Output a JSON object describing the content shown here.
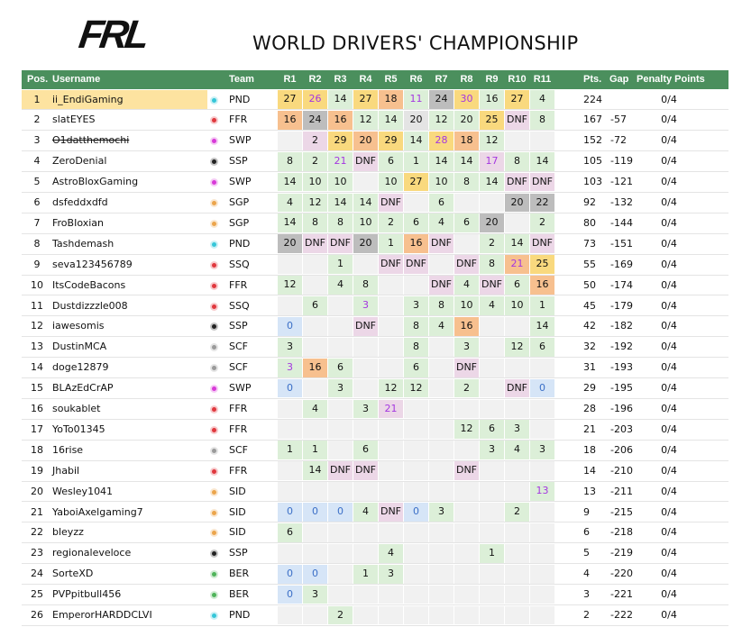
{
  "header": {
    "logo": "FRL",
    "title": "WORLD DRIVERS' CHAMPIONSHIP"
  },
  "table": {
    "columns": [
      "Pos.",
      "Username",
      "Team",
      "R1",
      "R2",
      "R3",
      "R4",
      "R5",
      "R6",
      "R7",
      "R8",
      "R9",
      "R10",
      "R11",
      "Pts.",
      "Gap",
      "Penalty Points"
    ],
    "team_colors": {
      "PND": "#35c6d8",
      "FFR": "#e0383e",
      "SWP": "#d83ad8",
      "SSP": "#222222",
      "SGP": "#eba54c",
      "SSQ": "#e0383e",
      "SCF": "#9a9a9a",
      "SID": "#eba54c",
      "BER": "#4fb45a"
    },
    "shade_colors": {
      "G": "#f9d97e",
      "S": "#bdbdbd",
      "B": "#f7c08f",
      "P": "#dcefd8",
      "N": "#e4e4e4",
      "D": "#ecd7e7",
      "Z": "#d6e5f7",
      "E": "#f1f1f1"
    },
    "rows": [
      {
        "pos": 1,
        "username": "ii_EndiGaming",
        "team": "PND",
        "results": [
          "27",
          "26",
          "14",
          "27",
          "18",
          "11",
          "24",
          "30",
          "16",
          "27",
          "4"
        ],
        "shade": [
          "G",
          "GF",
          "P",
          "G",
          "B",
          "PF",
          "S",
          "GF",
          "P",
          "G",
          "P"
        ],
        "pts": 224,
        "penalty": "0/4"
      },
      {
        "pos": 2,
        "username": "slatEYES",
        "team": "FFR",
        "results": [
          "16",
          "24",
          "16",
          "12",
          "14",
          "20",
          "12",
          "20",
          "25",
          "DNF",
          "8"
        ],
        "shade": [
          "B",
          "S",
          "B",
          "P",
          "P",
          "N",
          "P",
          "P",
          "G",
          "D",
          "P"
        ],
        "pts": 167,
        "gap": -57,
        "penalty": "0/4"
      },
      {
        "pos": 3,
        "username": "O1datthemochi",
        "struck": true,
        "team": "SWP",
        "results": [
          "",
          "2",
          "29",
          "20",
          "29",
          "14",
          "28",
          "18",
          "12",
          "",
          ""
        ],
        "shade": [
          "E",
          "D",
          "G",
          "B",
          "G",
          "P",
          "GF",
          "B",
          "P",
          "E",
          "E"
        ],
        "pts": 152,
        "gap": -72,
        "penalty": "0/4"
      },
      {
        "pos": 4,
        "username": "ZeroDenial",
        "team": "SSP",
        "results": [
          "8",
          "2",
          "21",
          "DNF",
          "6",
          "1",
          "14",
          "14",
          "17",
          "8",
          "14"
        ],
        "shade": [
          "P",
          "P",
          "PF",
          "D",
          "P",
          "P",
          "P",
          "P",
          "DF",
          "P",
          "P"
        ],
        "pts": 105,
        "gap": -119,
        "penalty": "0/4"
      },
      {
        "pos": 5,
        "username": "AstroBloxGaming",
        "team": "SWP",
        "results": [
          "14",
          "10",
          "10",
          "",
          "10",
          "27",
          "10",
          "8",
          "14",
          "DNF",
          "DNF"
        ],
        "shade": [
          "P",
          "P",
          "P",
          "E",
          "P",
          "G",
          "P",
          "P",
          "P",
          "D",
          "D"
        ],
        "pts": 103,
        "gap": -121,
        "penalty": "0/4"
      },
      {
        "pos": 6,
        "username": "dsfeddxdfd",
        "team": "SGP",
        "results": [
          "4",
          "12",
          "14",
          "14",
          "DNF",
          "",
          "6",
          "",
          "",
          "20",
          "22"
        ],
        "shade": [
          "P",
          "P",
          "P",
          "P",
          "D",
          "E",
          "P",
          "E",
          "E",
          "S",
          "S"
        ],
        "pts": 92,
        "gap": -132,
        "penalty": "0/4"
      },
      {
        "pos": 7,
        "username": "FroBIoxian",
        "team": "SGP",
        "results": [
          "14",
          "8",
          "8",
          "10",
          "2",
          "6",
          "4",
          "6",
          "20",
          "",
          "2"
        ],
        "shade": [
          "P",
          "P",
          "P",
          "P",
          "P",
          "P",
          "P",
          "P",
          "S",
          "E",
          "P"
        ],
        "pts": 80,
        "gap": -144,
        "penalty": "0/4"
      },
      {
        "pos": 8,
        "username": "Tashdemash",
        "team": "PND",
        "results": [
          "20",
          "DNF",
          "DNF",
          "20",
          "1",
          "16",
          "DNF",
          "",
          "2",
          "14",
          "DNF"
        ],
        "shade": [
          "S",
          "D",
          "D",
          "S",
          "P",
          "B",
          "D",
          "E",
          "P",
          "P",
          "D"
        ],
        "pts": 73,
        "gap": -151,
        "penalty": "0/4"
      },
      {
        "pos": 9,
        "username": "seva123456789",
        "team": "SSQ",
        "results": [
          "",
          "",
          "1",
          "",
          "DNF",
          "DNF",
          "",
          "DNF",
          "8",
          "21",
          "25"
        ],
        "shade": [
          "E",
          "E",
          "P",
          "E",
          "D",
          "D",
          "E",
          "D",
          "P",
          "BF",
          "G"
        ],
        "pts": 55,
        "gap": -169,
        "penalty": "0/4"
      },
      {
        "pos": 10,
        "username": "ItsCodeBacons",
        "team": "FFR",
        "results": [
          "12",
          "",
          "4",
          "8",
          "",
          "",
          "DNF",
          "4",
          "DNF",
          "6",
          "16"
        ],
        "shade": [
          "P",
          "E",
          "P",
          "P",
          "E",
          "E",
          "D",
          "P",
          "D",
          "P",
          "B"
        ],
        "pts": 50,
        "gap": -174,
        "penalty": "0/4"
      },
      {
        "pos": 11,
        "username": "Dustdizzzle008",
        "team": "SSQ",
        "results": [
          "",
          "6",
          "",
          "3",
          "",
          "3",
          "8",
          "10",
          "4",
          "10",
          "1"
        ],
        "shade": [
          "E",
          "P",
          "E",
          "PF",
          "E",
          "P",
          "P",
          "P",
          "P",
          "P",
          "P"
        ],
        "pts": 45,
        "gap": -179,
        "penalty": "0/4"
      },
      {
        "pos": 12,
        "username": "iawesomis",
        "team": "SSP",
        "results": [
          "0",
          "",
          "",
          "DNF",
          "",
          "8",
          "4",
          "16",
          "",
          "",
          "14"
        ],
        "shade": [
          "Z",
          "E",
          "E",
          "D",
          "E",
          "P",
          "P",
          "B",
          "E",
          "E",
          "P"
        ],
        "pts": 42,
        "gap": -182,
        "penalty": "0/4"
      },
      {
        "pos": 13,
        "username": "DustinMCA",
        "team": "SCF",
        "results": [
          "3",
          "",
          "",
          "",
          "",
          "8",
          "",
          "3",
          "",
          "12",
          "6"
        ],
        "shade": [
          "P",
          "E",
          "E",
          "E",
          "E",
          "P",
          "E",
          "P",
          "E",
          "P",
          "P"
        ],
        "pts": 32,
        "gap": -192,
        "penalty": "0/4"
      },
      {
        "pos": 14,
        "username": "doge12879",
        "team": "SCF",
        "results": [
          "3",
          "16",
          "6",
          "",
          "",
          "6",
          "",
          "DNF",
          "",
          "",
          ""
        ],
        "shade": [
          "PF",
          "B",
          "P",
          "E",
          "E",
          "P",
          "E",
          "D",
          "E",
          "E",
          "E"
        ],
        "pts": 31,
        "gap": -193,
        "penalty": "0/4"
      },
      {
        "pos": 15,
        "username": "BLAzEdCrAP",
        "team": "SWP",
        "results": [
          "0",
          "",
          "3",
          "",
          "12",
          "12",
          "",
          "2",
          "",
          "DNF",
          "0"
        ],
        "shade": [
          "Z",
          "E",
          "P",
          "E",
          "P",
          "P",
          "E",
          "P",
          "E",
          "D",
          "Z"
        ],
        "pts": 29,
        "gap": -195,
        "penalty": "0/4"
      },
      {
        "pos": 16,
        "username": "soukablet",
        "team": "FFR",
        "results": [
          "",
          "4",
          "",
          "3",
          "21",
          "",
          "",
          "",
          "",
          "",
          ""
        ],
        "shade": [
          "E",
          "P",
          "E",
          "P",
          "DF",
          "E",
          "E",
          "E",
          "E",
          "E",
          "E"
        ],
        "pts": 28,
        "gap": -196,
        "penalty": "0/4"
      },
      {
        "pos": 17,
        "username": "YoTo01345",
        "team": "FFR",
        "results": [
          "",
          "",
          "",
          "",
          "",
          "",
          "",
          "12",
          "6",
          "3",
          ""
        ],
        "shade": [
          "E",
          "E",
          "E",
          "E",
          "E",
          "E",
          "E",
          "P",
          "P",
          "P",
          "E"
        ],
        "pts": 21,
        "gap": -203,
        "penalty": "0/4"
      },
      {
        "pos": 18,
        "username": "16rise",
        "team": "SCF",
        "results": [
          "1",
          "1",
          "",
          "6",
          "",
          "",
          "",
          "",
          "3",
          "4",
          "3"
        ],
        "shade": [
          "P",
          "P",
          "E",
          "P",
          "E",
          "E",
          "E",
          "E",
          "P",
          "P",
          "P"
        ],
        "pts": 18,
        "gap": -206,
        "penalty": "0/4"
      },
      {
        "pos": 19,
        "username": "Jhabil",
        "team": "FFR",
        "results": [
          "",
          "14",
          "DNF",
          "DNF",
          "",
          "",
          "",
          "DNF",
          "",
          "",
          ""
        ],
        "shade": [
          "E",
          "P",
          "D",
          "D",
          "E",
          "E",
          "E",
          "D",
          "E",
          "E",
          "E"
        ],
        "pts": 14,
        "gap": -210,
        "penalty": "0/4"
      },
      {
        "pos": 20,
        "username": "Wesley1041",
        "team": "SID",
        "results": [
          "",
          "",
          "",
          "",
          "",
          "",
          "",
          "",
          "",
          "",
          "13"
        ],
        "shade": [
          "E",
          "E",
          "E",
          "E",
          "E",
          "E",
          "E",
          "E",
          "E",
          "E",
          "PF"
        ],
        "pts": 13,
        "gap": -211,
        "penalty": "0/4"
      },
      {
        "pos": 21,
        "username": "YaboiAxelgaming7",
        "team": "SID",
        "results": [
          "0",
          "0",
          "0",
          "4",
          "DNF",
          "0",
          "3",
          "",
          "",
          "2",
          ""
        ],
        "shade": [
          "Z",
          "Z",
          "Z",
          "P",
          "D",
          "Z",
          "P",
          "E",
          "E",
          "P",
          "E"
        ],
        "pts": 9,
        "gap": -215,
        "penalty": "0/4"
      },
      {
        "pos": 22,
        "username": "bleyzz",
        "team": "SID",
        "results": [
          "6",
          "",
          "",
          "",
          "",
          "",
          "",
          "",
          "",
          "",
          ""
        ],
        "shade": [
          "P",
          "E",
          "E",
          "E",
          "E",
          "E",
          "E",
          "E",
          "E",
          "E",
          "E"
        ],
        "pts": 6,
        "gap": -218,
        "penalty": "0/4"
      },
      {
        "pos": 23,
        "username": "regionaleveloce",
        "team": "SSP",
        "results": [
          "",
          "",
          "",
          "",
          "4",
          "",
          "",
          "",
          "1",
          "",
          ""
        ],
        "shade": [
          "E",
          "E",
          "E",
          "E",
          "P",
          "E",
          "E",
          "E",
          "P",
          "E",
          "E"
        ],
        "pts": 5,
        "gap": -219,
        "penalty": "0/4"
      },
      {
        "pos": 24,
        "username": "SorteXD",
        "team": "BER",
        "results": [
          "0",
          "0",
          "",
          "1",
          "3",
          "",
          "",
          "",
          "",
          "",
          ""
        ],
        "shade": [
          "Z",
          "Z",
          "E",
          "P",
          "P",
          "E",
          "E",
          "E",
          "E",
          "E",
          "E"
        ],
        "pts": 4,
        "gap": -220,
        "penalty": "0/4"
      },
      {
        "pos": 25,
        "username": "PVPpitbull456",
        "team": "BER",
        "results": [
          "0",
          "3",
          "",
          "",
          "",
          "",
          "",
          "",
          "",
          "",
          ""
        ],
        "shade": [
          "Z",
          "P",
          "E",
          "E",
          "E",
          "E",
          "E",
          "E",
          "E",
          "E",
          "E"
        ],
        "pts": 3,
        "gap": -221,
        "penalty": "0/4"
      },
      {
        "pos": 26,
        "username": "EmperorHARDDCLVI",
        "team": "PND",
        "results": [
          "",
          "",
          "2",
          "",
          "",
          "",
          "",
          "",
          "",
          "",
          ""
        ],
        "shade": [
          "E",
          "E",
          "P",
          "E",
          "E",
          "E",
          "E",
          "E",
          "E",
          "E",
          "E"
        ],
        "pts": 2,
        "gap": -222,
        "penalty": "0/4"
      }
    ]
  }
}
